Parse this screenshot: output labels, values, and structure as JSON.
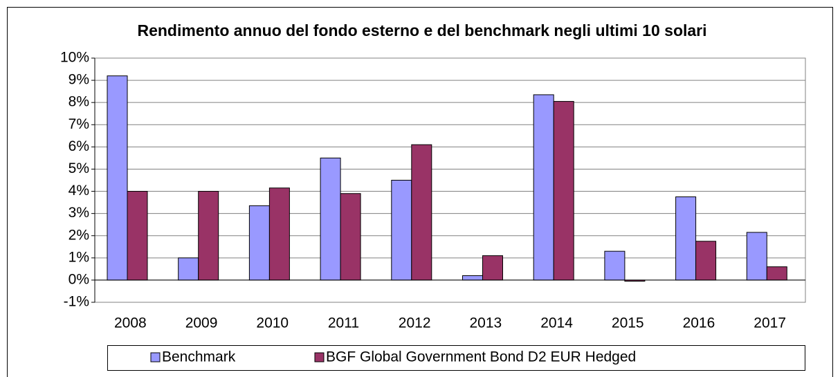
{
  "chart_data": {
    "type": "bar",
    "title": "Rendimento annuo del fondo esterno e del benchmark negli ultimi 10 solari",
    "categories": [
      "2008",
      "2009",
      "2010",
      "2011",
      "2012",
      "2013",
      "2014",
      "2015",
      "2016",
      "2017"
    ],
    "series": [
      {
        "name": "Benchmark",
        "color": "#9999ff",
        "values": [
          9.2,
          1.0,
          3.35,
          5.5,
          4.5,
          0.2,
          8.35,
          1.3,
          3.75,
          2.15
        ]
      },
      {
        "name": "BGF Global Government Bond D2 EUR Hedged",
        "color": "#993366",
        "values": [
          4.0,
          4.0,
          4.15,
          3.9,
          6.1,
          1.1,
          8.05,
          -0.05,
          1.75,
          0.6
        ]
      }
    ],
    "ylim": [
      -1,
      10
    ],
    "yticks": [
      {
        "value": -1,
        "label": "-1%"
      },
      {
        "value": 0,
        "label": "0%"
      },
      {
        "value": 1,
        "label": "1%"
      },
      {
        "value": 2,
        "label": "2%"
      },
      {
        "value": 3,
        "label": "3%"
      },
      {
        "value": 4,
        "label": "4%"
      },
      {
        "value": 5,
        "label": "5%"
      },
      {
        "value": 6,
        "label": "6%"
      },
      {
        "value": 7,
        "label": "7%"
      },
      {
        "value": 8,
        "label": "8%"
      },
      {
        "value": 9,
        "label": "9%"
      },
      {
        "value": 10,
        "label": "10%"
      }
    ],
    "grid": true,
    "legend": "bottom"
  }
}
